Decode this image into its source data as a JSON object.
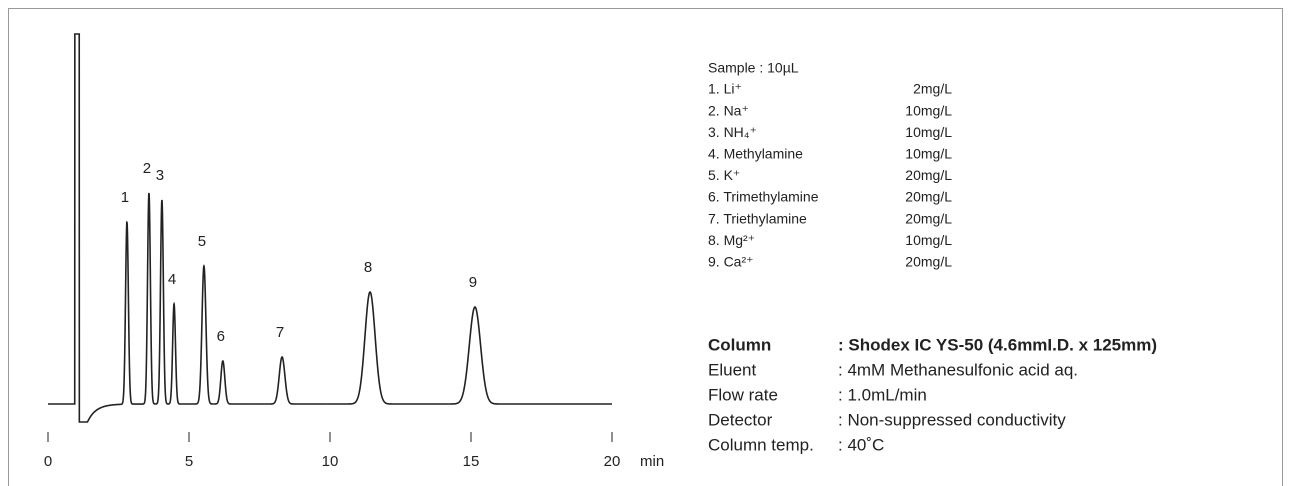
{
  "chart_data": {
    "type": "chromatogram",
    "xlabel": "min",
    "xlim": [
      0,
      20
    ],
    "xticks": [
      0,
      5,
      10,
      15,
      20
    ],
    "ylim": [
      -20,
      370
    ],
    "color": "#222222",
    "void": {
      "time": 1.03,
      "height": 370,
      "dip": -18
    },
    "peaks": {
      "labels": [
        "1",
        "2",
        "3",
        "4",
        "5",
        "6",
        "7",
        "8",
        "9"
      ],
      "times": [
        2.8,
        3.58,
        4.04,
        4.47,
        5.53,
        6.2,
        8.3,
        11.42,
        15.14
      ],
      "heights": [
        182,
        211,
        204,
        100,
        138,
        43,
        47,
        112,
        97
      ],
      "widths": [
        0.05,
        0.05,
        0.05,
        0.05,
        0.07,
        0.07,
        0.1,
        0.18,
        0.2
      ]
    }
  },
  "sample": {
    "title": "Sample : 10µL",
    "items": [
      {
        "name": "1. Li⁺",
        "amount": "2mg/L"
      },
      {
        "name": "2. Na⁺",
        "amount": "10mg/L"
      },
      {
        "name": "3. NH₄⁺",
        "amount": "10mg/L"
      },
      {
        "name": "4. Methylamine",
        "amount": "10mg/L"
      },
      {
        "name": "5. K⁺",
        "amount": "20mg/L"
      },
      {
        "name": "6. Trimethylamine",
        "amount": "20mg/L"
      },
      {
        "name": "7. Triethylamine",
        "amount": "20mg/L"
      },
      {
        "name": "8. Mg²⁺",
        "amount": "10mg/L"
      },
      {
        "name": "9. Ca²⁺",
        "amount": "20mg/L"
      }
    ]
  },
  "conditions": [
    {
      "key": "Column",
      "value": ": Shodex IC YS-50 (4.6mmI.D. x 125mm)"
    },
    {
      "key": "Eluent",
      "value": ": 4mM Methanesulfonic acid aq."
    },
    {
      "key": "Flow rate",
      "value": ": 1.0mL/min"
    },
    {
      "key": "Detector",
      "value": ": Non-suppressed conductivity"
    },
    {
      "key": "Column temp.",
      "value": ": 40˚C"
    }
  ]
}
